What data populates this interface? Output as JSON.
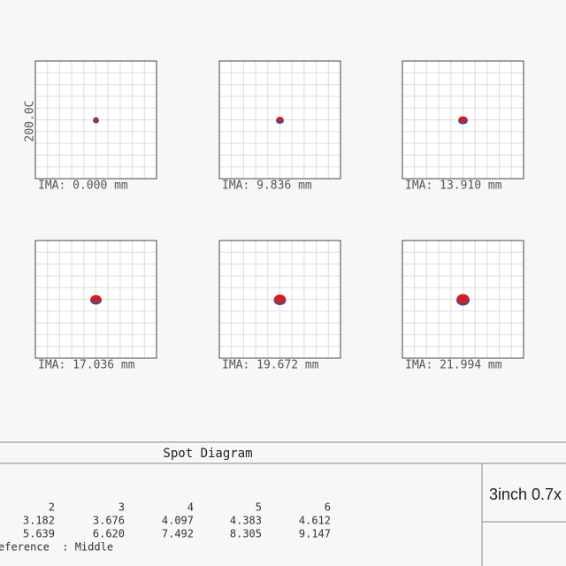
{
  "panels": [
    {
      "label": "IMA: 0.000 mm",
      "scale": "200.0C"
    },
    {
      "label": "IMA: 9.836 mm"
    },
    {
      "label": "IMA: 13.910 mm"
    },
    {
      "label": "IMA: 17.036 mm"
    },
    {
      "label": "IMA: 19.672 mm"
    },
    {
      "label": "IMA: 21.994 mm"
    }
  ],
  "footer": {
    "title": "Spot Diagram",
    "table": {
      "header": [
        "2",
        "3",
        "4",
        "5",
        "6"
      ],
      "rows": [
        [
          "3.182",
          "3.676",
          "4.097",
          "4.383",
          "4.612"
        ],
        [
          "5.639",
          "6.620",
          "7.492",
          "8.305",
          "9.147"
        ]
      ],
      "reference": "eference  : Middle"
    },
    "box": "3inch 0.7x"
  }
}
